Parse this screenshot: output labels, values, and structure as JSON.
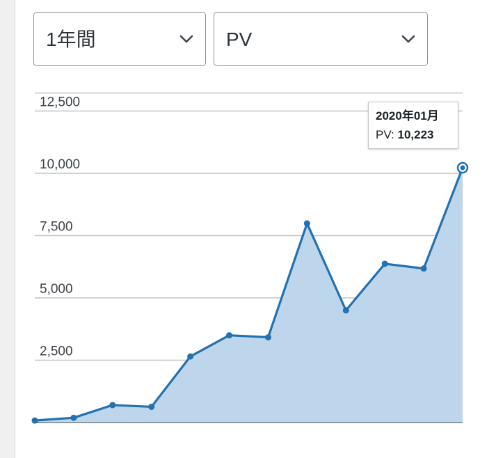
{
  "filters": {
    "period": "1年間",
    "metric": "PV"
  },
  "icons": {
    "dropdown": "chevron-down-icon"
  },
  "tooltip": {
    "title": "2020年01月",
    "metric_label": "PV:",
    "metric_value": "10,223"
  },
  "colors": {
    "line": "#2271b1",
    "area": "#bdd6ec",
    "grid": "#c3c4c7",
    "baseline": "#1d2327"
  },
  "chart_data": {
    "type": "area",
    "y_tick_labels": [
      "2,500",
      "5,000",
      "7,500",
      "10,000",
      "12,500"
    ],
    "y_ticks": [
      2500,
      5000,
      7500,
      10000,
      12500
    ],
    "ylim": [
      0,
      13000
    ],
    "grid": true,
    "series": [
      {
        "values": [
          80,
          190,
          700,
          630,
          2650,
          3500,
          3420,
          7990,
          4500,
          6370,
          6180,
          10223
        ]
      }
    ],
    "highlighted_index": 11
  }
}
